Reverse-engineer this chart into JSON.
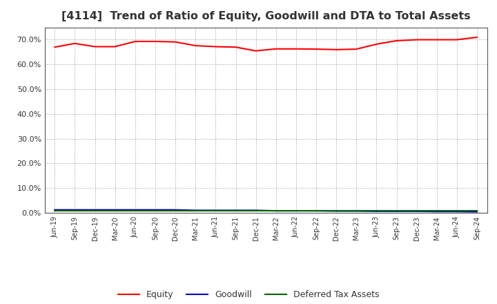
{
  "title": "[4114]  Trend of Ratio of Equity, Goodwill and DTA to Total Assets",
  "title_fontsize": 11.5,
  "x_labels": [
    "Jun-19",
    "Sep-19",
    "Dec-19",
    "Mar-20",
    "Jun-20",
    "Sep-20",
    "Dec-20",
    "Mar-21",
    "Jun-21",
    "Sep-21",
    "Dec-21",
    "Mar-22",
    "Jun-22",
    "Sep-22",
    "Dec-22",
    "Mar-23",
    "Jun-23",
    "Sep-23",
    "Dec-23",
    "Mar-24",
    "Jun-24",
    "Sep-24"
  ],
  "equity": [
    0.67,
    0.685,
    0.672,
    0.672,
    0.693,
    0.693,
    0.691,
    0.676,
    0.672,
    0.67,
    0.655,
    0.663,
    0.663,
    0.662,
    0.66,
    0.662,
    0.682,
    0.696,
    0.7,
    0.7,
    0.7,
    0.71
  ],
  "goodwill": [
    0.012,
    0.012,
    0.012,
    0.012,
    0.012,
    0.012,
    0.012,
    0.01,
    0.01,
    0.01,
    0.01,
    0.008,
    0.008,
    0.008,
    0.007,
    0.007,
    0.006,
    0.006,
    0.006,
    0.005,
    0.005,
    0.004
  ],
  "dta": [
    0.009,
    0.009,
    0.009,
    0.009,
    0.009,
    0.009,
    0.009,
    0.009,
    0.009,
    0.009,
    0.009,
    0.009,
    0.009,
    0.009,
    0.009,
    0.009,
    0.009,
    0.009,
    0.009,
    0.009,
    0.009,
    0.009
  ],
  "equity_color": "#ff0000",
  "goodwill_color": "#0000cc",
  "dta_color": "#006400",
  "background_color": "#ffffff",
  "plot_bg_color": "#ffffff",
  "grid_color": "#999999",
  "ylim": [
    0.0,
    0.75
  ],
  "yticks": [
    0.0,
    0.1,
    0.2,
    0.3,
    0.4,
    0.5,
    0.6,
    0.7
  ],
  "legend_labels": [
    "Equity",
    "Goodwill",
    "Deferred Tax Assets"
  ]
}
